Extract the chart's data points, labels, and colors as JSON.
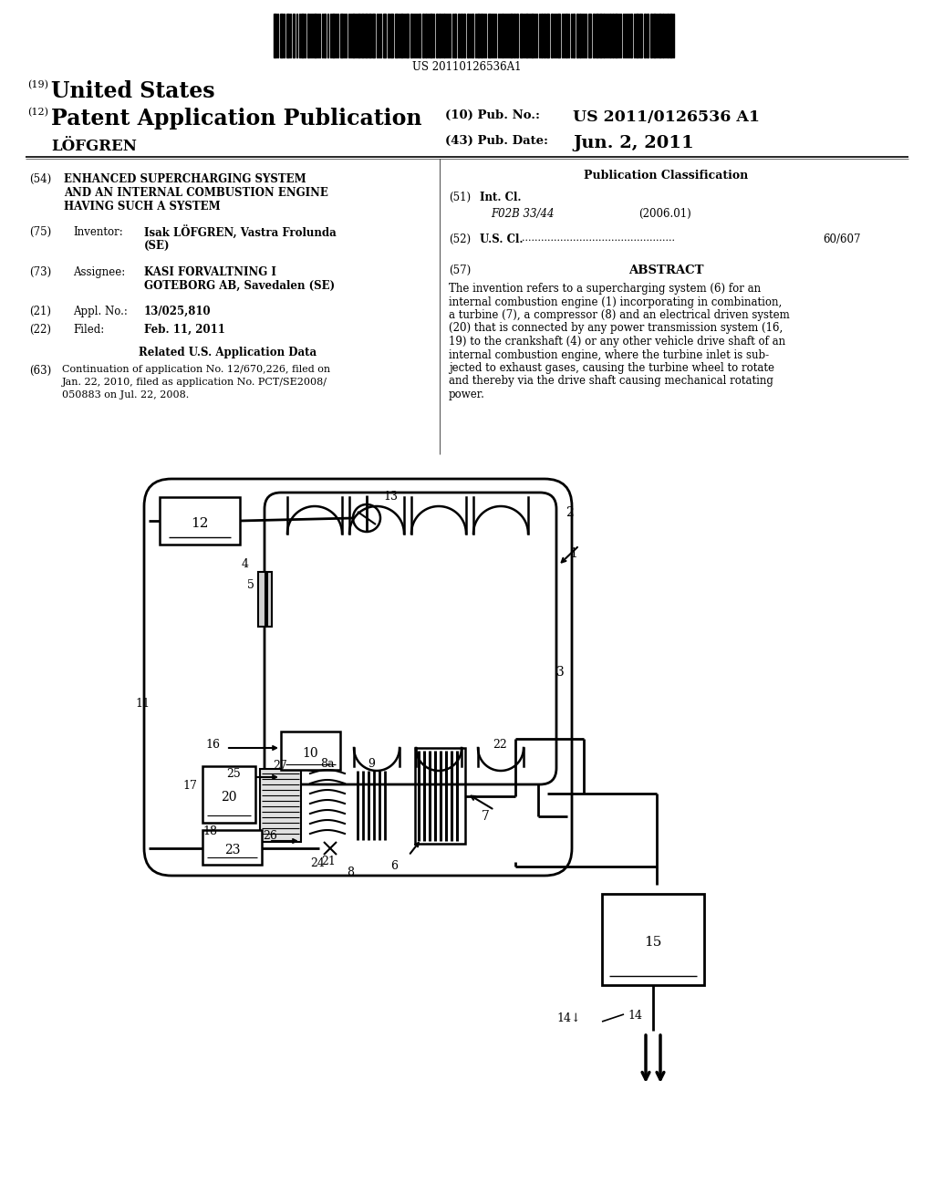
{
  "background_color": "#ffffff",
  "barcode_text": "US 20110126536A1",
  "header_19_text": "United States",
  "header_12_text": "Patent Application Publication",
  "header_10_text": "US 2011/0126536 A1",
  "header_43_text": "Jun. 2, 2011",
  "inventor_last": "LÖFGREN",
  "field_54_text": "ENHANCED SUPERCHARGING SYSTEM\nAND AN INTERNAL COMBUSTION ENGINE\nHAVING SUCH A SYSTEM",
  "field_75_key": "Inventor:",
  "field_75_val1": "Isak LÖFGREN, Vastra Frolunda",
  "field_75_val2": "(SE)",
  "field_73_key": "Assignee:",
  "field_73_val1": "KASI FORVALTNING I",
  "field_73_val2": "GOTEBORG AB, Savedalen (SE)",
  "field_21_key": "Appl. No.:",
  "field_21_val": "13/025,810",
  "field_22_key": "Filed:",
  "field_22_val": "Feb. 11, 2011",
  "related_title": "Related U.S. Application Data",
  "field_63_text": "Continuation of application No. 12/670,226, filed on\nJan. 22, 2010, filed as application No. PCT/SE2008/\n050883 on Jul. 22, 2008.",
  "pub_class_title": "Publication Classification",
  "field_51_key": "Int. Cl.",
  "field_51_val": "F02B 33/44",
  "field_51_year": "(2006.01)",
  "field_52_key": "U.S. Cl.",
  "field_52_val": "60/607",
  "field_57_title": "ABSTRACT",
  "abstract_text": "The invention refers to a supercharging system (6) for an\ninternal combustion engine (1) incorporating in combination,\na turbine (7), a compressor (8) and an electrical driven system\n(20) that is connected by any power transmission system (16,\n19) to the crankshaft (4) or any other vehicle drive shaft of an\ninternal combustion engine, where the turbine inlet is sub-\njected to exhaust gases, causing the turbine wheel to rotate\nand thereby via the drive shaft causing mechanical rotating\npower."
}
